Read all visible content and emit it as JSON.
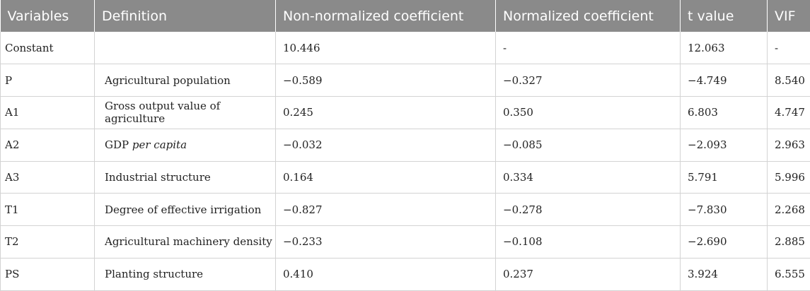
{
  "table": {
    "headers": [
      "Variables",
      "Definition",
      "Non-normalized coefficient",
      "Normalized coefficient",
      "t value",
      "VIF"
    ],
    "rows": [
      {
        "variable": "Constant",
        "definition": "",
        "nonnorm": "10.446",
        "norm": "-",
        "t": "12.063",
        "vif": "-"
      },
      {
        "variable": "P",
        "definition": "Agricultural population",
        "nonnorm": "−0.589",
        "norm": "−0.327",
        "t": "−4.749",
        "vif": "8.540"
      },
      {
        "variable": "A1",
        "definition": "Gross output value of agriculture",
        "nonnorm": "0.245",
        "norm": "0.350",
        "t": "6.803",
        "vif": "4.747"
      },
      {
        "variable": "A2",
        "definition_prefix": "GDP ",
        "definition_italic": "per capita",
        "nonnorm": "−0.032",
        "norm": "−0.085",
        "t": "−2.093",
        "vif": "2.963"
      },
      {
        "variable": "A3",
        "definition": "Industrial structure",
        "nonnorm": "0.164",
        "norm": "0.334",
        "t": "5.791",
        "vif": "5.996"
      },
      {
        "variable": "T1",
        "definition": "Degree of effective irrigation",
        "nonnorm": "−0.827",
        "norm": "−0.278",
        "t": "−7.830",
        "vif": "2.268"
      },
      {
        "variable": "T2",
        "definition": "Agricultural machinery density",
        "nonnorm": "−0.233",
        "norm": "−0.108",
        "t": "−2.690",
        "vif": "2.885"
      },
      {
        "variable": "PS",
        "definition": "Planting structure",
        "nonnorm": "0.410",
        "norm": "0.237",
        "t": "3.924",
        "vif": "6.555"
      }
    ]
  }
}
